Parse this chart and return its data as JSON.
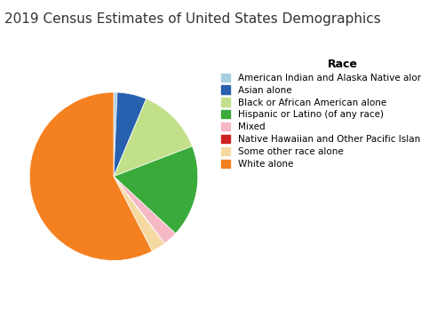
{
  "title": "2019 Census Estimates of United States Demographics",
  "legend_title": "Race",
  "labels": [
    "American Indian and Alaska Native alone",
    "Asian alone",
    "Black or African American alone",
    "Hispanic or Latino (of any race)",
    "Mixed",
    "Native Hawaiian and Other Pacific Islander alone",
    "Some other race alone",
    "White alone"
  ],
  "values": [
    0.7,
    5.9,
    13.4,
    18.5,
    2.8,
    0.2,
    2.8,
    60.1
  ],
  "colors": [
    "#a8cfe0",
    "#2860b0",
    "#c2e08a",
    "#3aaa3a",
    "#f5b8c4",
    "#cc2222",
    "#f5d9a0",
    "#f58020"
  ],
  "background_color": "#ffffff",
  "title_fontsize": 11,
  "legend_fontsize": 7.5,
  "startangle": 90
}
